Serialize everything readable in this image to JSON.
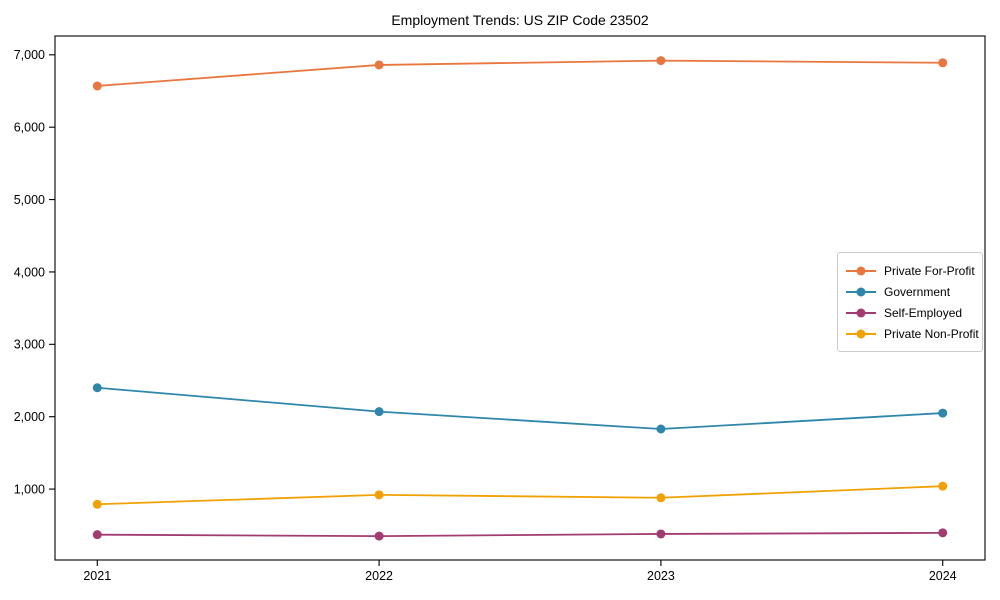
{
  "chart_data": {
    "type": "line",
    "title": "Employment Trends: US ZIP Code 23502",
    "categories": [
      "2021",
      "2022",
      "2023",
      "2024"
    ],
    "series": [
      {
        "name": "Private For-Profit",
        "color": "#E8773F",
        "values": [
          6570,
          6860,
          6920,
          6890
        ]
      },
      {
        "name": "Government",
        "color": "#2E86AB",
        "values": [
          2400,
          2070,
          1830,
          2050
        ]
      },
      {
        "name": "Self-Employed",
        "color": "#A23B72",
        "values": [
          370,
          350,
          380,
          395
        ]
      },
      {
        "name": "Private Non-Profit",
        "color": "#F2A104",
        "values": [
          790,
          920,
          880,
          1040
        ]
      }
    ],
    "xlabel": "",
    "ylabel": "",
    "yticks": [
      1000,
      2000,
      3000,
      4000,
      5000,
      6000,
      7000
    ],
    "ytick_labels": [
      "1,000",
      "2,000",
      "3,000",
      "4,000",
      "5,000",
      "6,000",
      "7,000"
    ],
    "ylim": [
      20,
      7260
    ],
    "grid": false,
    "legend_position": "center-right",
    "marker": "circle",
    "background": "#FFFFFF",
    "axis_color": "#000000"
  }
}
